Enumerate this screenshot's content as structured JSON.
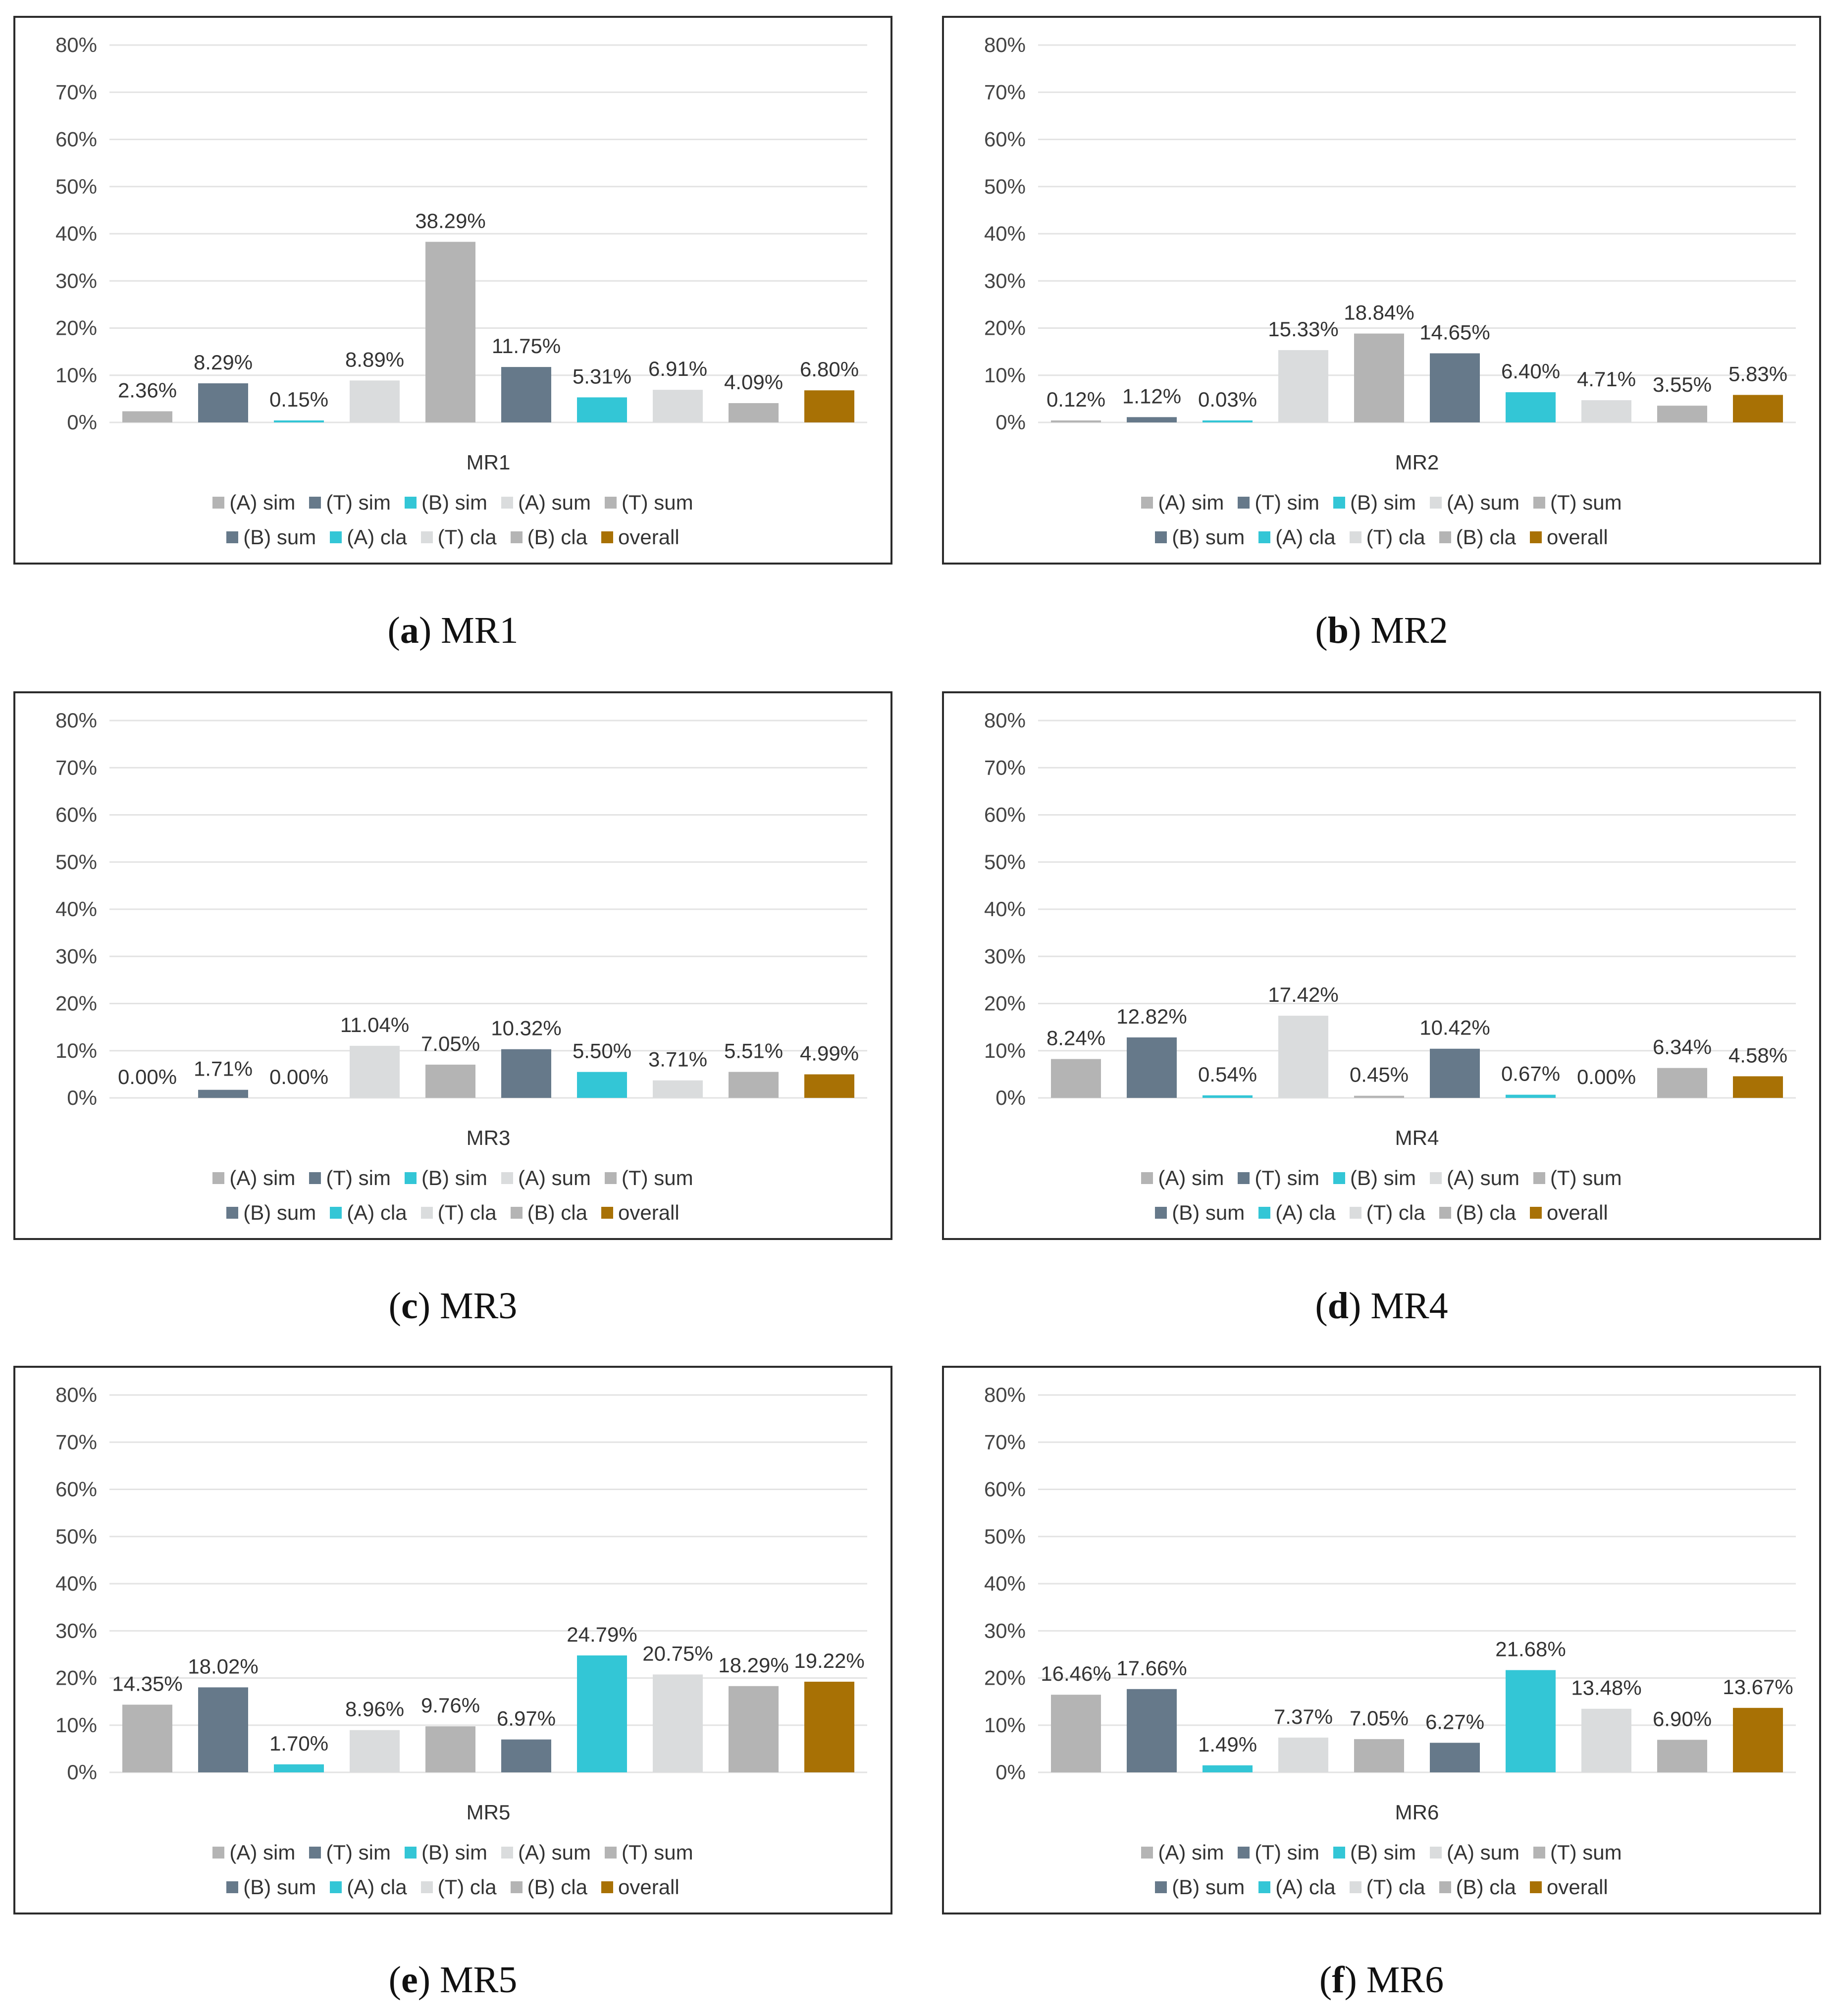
{
  "series_legend": [
    "(A) sim",
    "(T) sim",
    "(B) sim",
    "(A) sum",
    "(T) sum",
    "(B) sum",
    "(A) cla",
    "(T) cla",
    "(B) cla",
    "overall"
  ],
  "colors": [
    "#b4b4b4",
    "#66798a",
    "#33c6d6",
    "#dadcdd",
    "#b4b4b4",
    "#66798a",
    "#33c6d6",
    "#dadcdd",
    "#b4b4b4",
    "#a87105"
  ],
  "captions": [
    {
      "letter": "a",
      "text": "MR1"
    },
    {
      "letter": "b",
      "text": "MR2"
    },
    {
      "letter": "c",
      "text": "MR3"
    },
    {
      "letter": "d",
      "text": "MR4"
    },
    {
      "letter": "e",
      "text": "MR5"
    },
    {
      "letter": "f",
      "text": "MR6"
    }
  ],
  "chart_data": [
    {
      "type": "bar",
      "xlabel": "MR1",
      "ylim": [
        0,
        80
      ],
      "y_ticks": [
        "0%",
        "10%",
        "20%",
        "30%",
        "40%",
        "50%",
        "60%",
        "70%",
        "80%"
      ],
      "grid": true,
      "legend": "bottom",
      "categories": [
        "(A) sim",
        "(T) sim",
        "(B) sim",
        "(A) sum",
        "(T) sum",
        "(B) sum",
        "(A) cla",
        "(T) cla",
        "(B) cla",
        "overall"
      ],
      "values": [
        2.36,
        8.29,
        0.15,
        8.89,
        38.29,
        11.75,
        5.31,
        6.91,
        4.09,
        6.8
      ],
      "labels": [
        "2.36%",
        "8.29%",
        "0.15%",
        "8.89%",
        "38.29%",
        "11.75%",
        "5.31%",
        "6.91%",
        "4.09%",
        "6.80%"
      ]
    },
    {
      "type": "bar",
      "xlabel": "MR2",
      "ylim": [
        0,
        80
      ],
      "y_ticks": [
        "0%",
        "10%",
        "20%",
        "30%",
        "40%",
        "50%",
        "60%",
        "70%",
        "80%"
      ],
      "grid": true,
      "legend": "bottom",
      "categories": [
        "(A) sim",
        "(T) sim",
        "(B) sim",
        "(A) sum",
        "(T) sum",
        "(B) sum",
        "(A) cla",
        "(T) cla",
        "(B) cla",
        "overall"
      ],
      "values": [
        0.12,
        1.12,
        0.03,
        15.33,
        18.84,
        14.65,
        6.4,
        4.71,
        3.55,
        5.83
      ],
      "labels": [
        "0.12%",
        "1.12%",
        "0.03%",
        "15.33%",
        "18.84%",
        "14.65%",
        "6.40%",
        "4.71%",
        "3.55%",
        "5.83%"
      ]
    },
    {
      "type": "bar",
      "xlabel": "MR3",
      "ylim": [
        0,
        80
      ],
      "y_ticks": [
        "0%",
        "10%",
        "20%",
        "30%",
        "40%",
        "50%",
        "60%",
        "70%",
        "80%"
      ],
      "grid": true,
      "legend": "bottom",
      "categories": [
        "(A) sim",
        "(T) sim",
        "(B) sim",
        "(A) sum",
        "(T) sum",
        "(B) sum",
        "(A) cla",
        "(T) cla",
        "(B) cla",
        "overall"
      ],
      "values": [
        0.0,
        1.71,
        0.0,
        11.04,
        7.05,
        10.32,
        5.5,
        3.71,
        5.51,
        4.99
      ],
      "labels": [
        "0.00%",
        "1.71%",
        "0.00%",
        "11.04%",
        "7.05%",
        "10.32%",
        "5.50%",
        "3.71%",
        "5.51%",
        "4.99%"
      ]
    },
    {
      "type": "bar",
      "xlabel": "MR4",
      "ylim": [
        0,
        80
      ],
      "y_ticks": [
        "0%",
        "10%",
        "20%",
        "30%",
        "40%",
        "50%",
        "60%",
        "70%",
        "80%"
      ],
      "grid": true,
      "legend": "bottom",
      "categories": [
        "(A) sim",
        "(T) sim",
        "(B) sim",
        "(A) sum",
        "(T) sum",
        "(B) sum",
        "(A) cla",
        "(T) cla",
        "(B) cla",
        "overall"
      ],
      "values": [
        8.24,
        12.82,
        0.54,
        17.42,
        0.45,
        10.42,
        0.67,
        0.0,
        6.34,
        4.58
      ],
      "labels": [
        "8.24%",
        "12.82%",
        "0.54%",
        "17.42%",
        "0.45%",
        "10.42%",
        "0.67%",
        "0.00%",
        "6.34%",
        "4.58%"
      ]
    },
    {
      "type": "bar",
      "xlabel": "MR5",
      "ylim": [
        0,
        80
      ],
      "y_ticks": [
        "0%",
        "10%",
        "20%",
        "30%",
        "40%",
        "50%",
        "60%",
        "70%",
        "80%"
      ],
      "grid": true,
      "legend": "bottom",
      "categories": [
        "(A) sim",
        "(T) sim",
        "(B) sim",
        "(A) sum",
        "(T) sum",
        "(B) sum",
        "(A) cla",
        "(T) cla",
        "(B) cla",
        "overall"
      ],
      "values": [
        14.35,
        18.02,
        1.7,
        8.96,
        9.76,
        6.97,
        24.79,
        20.75,
        18.29,
        19.22
      ],
      "labels": [
        "14.35%",
        "18.02%",
        "1.70%",
        "8.96%",
        "9.76%",
        "6.97%",
        "24.79%",
        "20.75%",
        "18.29%",
        "19.22%"
      ]
    },
    {
      "type": "bar",
      "xlabel": "MR6",
      "ylim": [
        0,
        80
      ],
      "y_ticks": [
        "0%",
        "10%",
        "20%",
        "30%",
        "40%",
        "50%",
        "60%",
        "70%",
        "80%"
      ],
      "grid": true,
      "legend": "bottom",
      "categories": [
        "(A) sim",
        "(T) sim",
        "(B) sim",
        "(A) sum",
        "(T) sum",
        "(B) sum",
        "(A) cla",
        "(T) cla",
        "(B) cla",
        "overall"
      ],
      "values": [
        16.46,
        17.66,
        1.49,
        7.37,
        7.05,
        6.27,
        21.68,
        13.48,
        6.9,
        13.67
      ],
      "labels": [
        "16.46%",
        "17.66%",
        "1.49%",
        "7.37%",
        "7.05%",
        "6.27%",
        "21.68%",
        "13.48%",
        "6.90%",
        "13.67%"
      ]
    }
  ]
}
